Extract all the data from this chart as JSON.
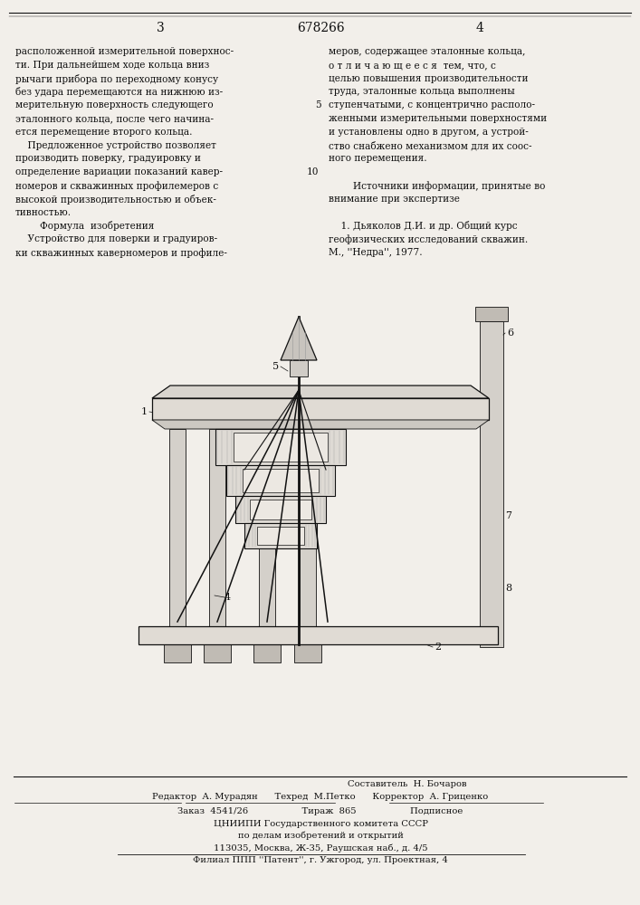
{
  "page_number_left": "3",
  "patent_number": "678266",
  "page_number_right": "4",
  "bg_color": "#f2efea",
  "text_color": "#111111",
  "left_column": [
    "расположенной измерительной поверхнос-",
    "ти. При дальнейшем ходе кольца вниз",
    "рычаги прибора по переходному конусу",
    "без удара перемещаются на нижнюю из-",
    "мерительную поверхность следующего",
    "эталонного кольца, после чего начина-",
    "ется перемещение второго кольца.",
    "    Предложенное устройство позволяет",
    "производить поверку, градуировку и",
    "определение вариации показаний кавер-",
    "номеров и скважинных профилемеров с",
    "высокой производительностью и объек-",
    "тивностью.",
    "        Формула  изобретения",
    "    Устройство для поверки и градуиров-",
    "ки скважинных каверномеров и профиле-"
  ],
  "right_column": [
    "меров, содержащее эталонные кольца,",
    "о т л и ч а ю щ е е с я  тем, что, с",
    "целью повышения производительности",
    "труда, эталонные кольца выполнены",
    "ступенчатыми, с концентрично располо-",
    "женными измерительными поверхностями",
    "и установлены одно в другом, а устрой-",
    "ство снабжено механизмом для их соос-",
    "ного перемещения.",
    "",
    "        Источники информации, принятые во",
    "внимание при экспертизе",
    "",
    "    1. Дьяколов Д.И. и др. Общий курс",
    "геофизических исследований скважин.",
    "М., ''Недра'', 1977."
  ],
  "footer_line1": "Составитель  Н. Бочаров",
  "footer_line2": "Редактор  А. Мурадян      Техред  М.Петко      Корректор  А. Гриценко",
  "footer_line3": "Заказ  4541/26                   Тираж  865                   Подписное",
  "footer_line4": "ЦНИИПИ Государственного комитета СССР",
  "footer_line5": "по делам изобретений и открытий",
  "footer_line6": "113035, Москва, Ж-35, Раушская наб., д. 4/5",
  "footer_line7": "Филиал ППП ''Патент'', г. Ужгород, ул. Проектная, 4"
}
